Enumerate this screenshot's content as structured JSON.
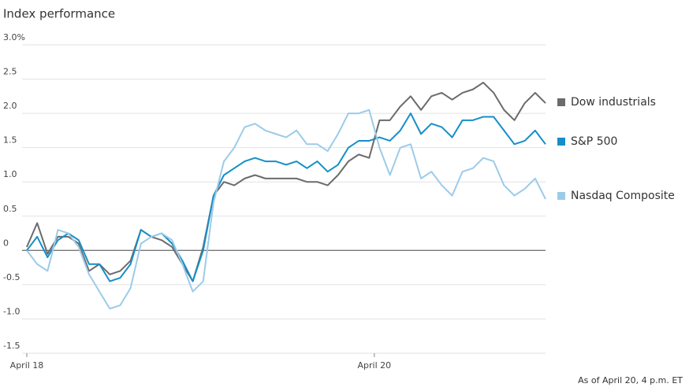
{
  "chart_data": {
    "type": "line",
    "title": "Index performance",
    "note": "As of April 20, 4 p.m. ET",
    "x": [
      0,
      2,
      4,
      6,
      8,
      10,
      12,
      14,
      16,
      18,
      20,
      22,
      24,
      26,
      28,
      30,
      32,
      34,
      36,
      38,
      40,
      42,
      44,
      46,
      48,
      50,
      52,
      54,
      56,
      58,
      60,
      62,
      64,
      66,
      68,
      70,
      72,
      74,
      76,
      78,
      80,
      82,
      84,
      86,
      88,
      90,
      92,
      94,
      96,
      98,
      100
    ],
    "xlim": [
      0,
      100
    ],
    "xticks": [
      {
        "value": 0,
        "label": "April 18"
      },
      {
        "value": 67,
        "label": "April 20"
      }
    ],
    "ylim": [
      -1.5,
      3.0
    ],
    "yticks": [
      {
        "value": 3.0,
        "label": "3.0%"
      },
      2.5,
      {
        "value": 2,
        "label": "2.0"
      },
      1.5,
      {
        "value": 1,
        "label": "1.0"
      },
      0.5,
      0,
      -0.5,
      {
        "value": -1,
        "label": "-1.0"
      },
      -1.5
    ],
    "grid": true,
    "legend": "right",
    "series": [
      {
        "name": "Dow industrials",
        "color": "#6b6b6b",
        "values": [
          0.05,
          0.4,
          -0.05,
          0.2,
          0.2,
          0.1,
          -0.3,
          -0.2,
          -0.35,
          -0.3,
          -0.15,
          0.3,
          0.2,
          0.15,
          0.05,
          -0.2,
          -0.45,
          0.05,
          0.8,
          1.0,
          0.95,
          1.05,
          1.1,
          1.05,
          1.05,
          1.05,
          1.05,
          1.0,
          1.0,
          0.95,
          1.1,
          1.3,
          1.4,
          1.35,
          1.9,
          1.9,
          2.1,
          2.25,
          2.05,
          2.25,
          2.3,
          2.2,
          2.3,
          2.35,
          2.45,
          2.3,
          2.05,
          1.9,
          2.15,
          2.3,
          2.15
        ]
      },
      {
        "name": "S&P 500",
        "color": "#168ec8",
        "values": [
          0.0,
          0.2,
          -0.1,
          0.15,
          0.25,
          0.15,
          -0.2,
          -0.2,
          -0.45,
          -0.4,
          -0.2,
          0.3,
          0.2,
          0.25,
          0.1,
          -0.15,
          -0.45,
          0.0,
          0.8,
          1.1,
          1.2,
          1.3,
          1.35,
          1.3,
          1.3,
          1.25,
          1.3,
          1.2,
          1.3,
          1.15,
          1.25,
          1.5,
          1.6,
          1.6,
          1.65,
          1.6,
          1.75,
          2.0,
          1.7,
          1.85,
          1.8,
          1.65,
          1.9,
          1.9,
          1.95,
          1.95,
          1.75,
          1.55,
          1.6,
          1.75,
          1.55
        ]
      },
      {
        "name": "Nasdaq Composite",
        "color": "#9ccbe9",
        "values": [
          0.0,
          -0.2,
          -0.3,
          0.3,
          0.25,
          0.05,
          -0.35,
          -0.6,
          -0.85,
          -0.8,
          -0.55,
          0.1,
          0.2,
          0.25,
          0.15,
          -0.2,
          -0.6,
          -0.45,
          0.7,
          1.3,
          1.5,
          1.8,
          1.85,
          1.75,
          1.7,
          1.65,
          1.75,
          1.55,
          1.55,
          1.45,
          1.7,
          2.0,
          2.0,
          2.05,
          1.5,
          1.1,
          1.5,
          1.55,
          1.05,
          1.15,
          0.95,
          0.8,
          1.15,
          1.2,
          1.35,
          1.3,
          0.95,
          0.8,
          0.9,
          1.05,
          0.75
        ]
      }
    ]
  }
}
